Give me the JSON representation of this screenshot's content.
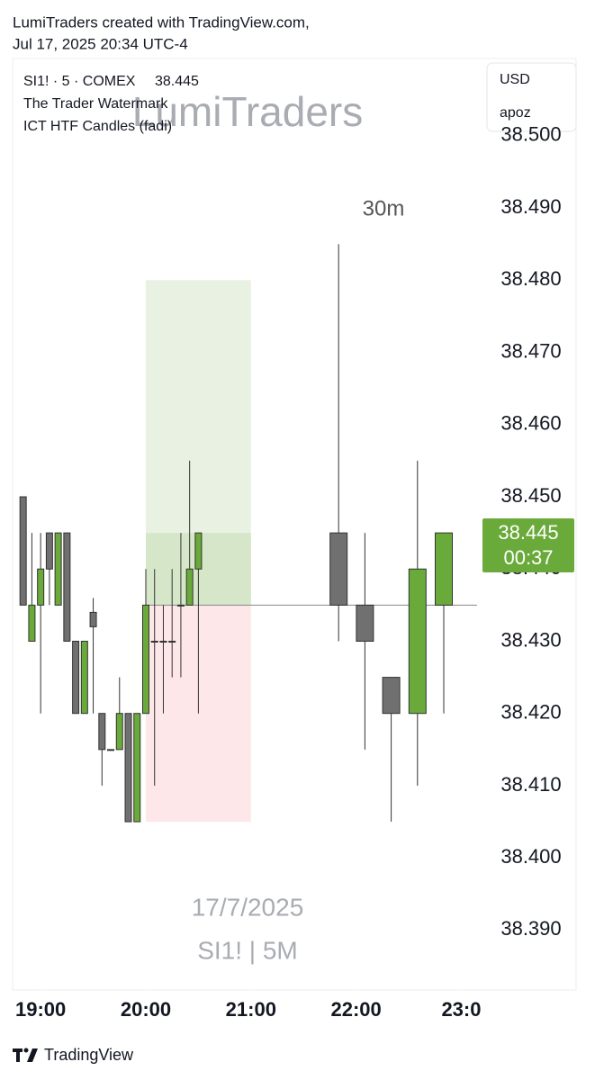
{
  "header": {
    "line1": "LumiTraders created with TradingView.com,",
    "line2": "Jul 17, 2025 20:34 UTC-4"
  },
  "chart_data": {
    "type": "candlestick",
    "symbol": "SI1! · 5 · COMEX",
    "indicators": [
      "The Trader Watermark",
      "ICT HTF Candles (fadi)"
    ],
    "watermark": "LumiTraders",
    "watermark_date": "17/7/2025",
    "watermark_symbol": "SI1! | 5M",
    "currency": "USD",
    "account": "apoz",
    "up_color": "#6aaa3a",
    "down_color": "#707070",
    "candles": {
      "x": [
        1130,
        1135,
        1140,
        1145,
        1150,
        1155,
        1160,
        1165,
        1170,
        1175,
        1180,
        1185,
        1190,
        1195,
        1200,
        1205,
        1210,
        1215,
        1220,
        1225,
        1230
      ],
      "open": [
        38.45,
        38.43,
        38.435,
        38.445,
        38.435,
        38.445,
        38.43,
        38.42,
        38.434,
        38.42,
        38.415,
        38.415,
        38.42,
        38.405,
        38.42,
        38.43,
        38.43,
        38.43,
        38.435,
        38.435,
        38.44
      ],
      "high": [
        38.45,
        38.445,
        38.445,
        38.445,
        38.445,
        38.445,
        38.43,
        38.43,
        38.436,
        38.42,
        38.415,
        38.425,
        38.42,
        38.42,
        38.44,
        38.44,
        38.435,
        38.44,
        38.445,
        38.455,
        38.445
      ],
      "low": [
        38.435,
        38.43,
        38.42,
        38.435,
        38.435,
        38.43,
        38.42,
        38.42,
        38.42,
        38.41,
        38.415,
        38.415,
        38.405,
        38.405,
        38.42,
        38.41,
        38.42,
        38.425,
        38.425,
        38.435,
        38.42
      ],
      "close": [
        38.435,
        38.435,
        38.44,
        38.44,
        38.445,
        38.43,
        38.42,
        38.43,
        38.432,
        38.415,
        38.415,
        38.42,
        38.405,
        38.42,
        38.435,
        38.43,
        38.43,
        38.43,
        38.435,
        38.44,
        38.445
      ]
    },
    "htf_label": "30m",
    "htf_candles": {
      "x": [
        1310,
        1325,
        1340,
        1355,
        1370
      ],
      "open": [
        38.445,
        38.435,
        38.425,
        38.42,
        38.435
      ],
      "high": [
        38.485,
        38.445,
        38.425,
        38.455,
        38.445
      ],
      "low": [
        38.43,
        38.415,
        38.405,
        38.41,
        38.42
      ],
      "close": [
        38.435,
        38.43,
        38.42,
        38.44,
        38.445
      ]
    },
    "position": {
      "x": [
        1200,
        1260
      ],
      "target": 38.48,
      "entry": 38.435,
      "stop": 38.405
    },
    "last_price": 38.445,
    "countdown": "00:37",
    "xlim": [
      1124,
      1389
    ],
    "xticks": [
      {
        "value": 1140,
        "label": "19:00"
      },
      {
        "value": 1200,
        "label": "20:00"
      },
      {
        "value": 1260,
        "label": "21:00"
      },
      {
        "value": 1320,
        "label": "22:00"
      },
      {
        "value": 1380,
        "label": "23:0"
      }
    ],
    "ylim": [
      38.3817,
      38.5107
    ],
    "yticks": [
      {
        "value": 38.39,
        "label": "38.390"
      },
      {
        "value": 38.4,
        "label": "38.400"
      },
      {
        "value": 38.41,
        "label": "38.410"
      },
      {
        "value": 38.42,
        "label": "38.420"
      },
      {
        "value": 38.43,
        "label": "38.430"
      },
      {
        "value": 38.44,
        "label": "38.440"
      },
      {
        "value": 38.45,
        "label": "38.450"
      },
      {
        "value": 38.46,
        "label": "38.460"
      },
      {
        "value": 38.47,
        "label": "38.470"
      },
      {
        "value": 38.48,
        "label": "38.480"
      },
      {
        "value": 38.49,
        "label": "38.490"
      },
      {
        "value": 38.5,
        "label": "38.500"
      }
    ]
  },
  "footer": {
    "brand": "TradingView"
  }
}
